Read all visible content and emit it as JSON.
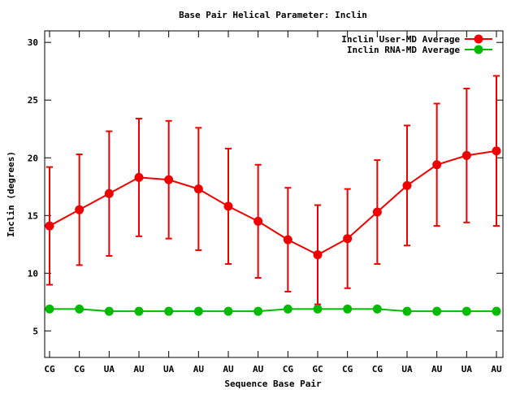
{
  "chart_data": {
    "type": "line",
    "title": "Base Pair Helical Parameter: Inclin",
    "xlabel": "Sequence Base Pair",
    "ylabel": "Inclin (degrees)",
    "categories": [
      "CG",
      "CG",
      "UA",
      "AU",
      "UA",
      "AU",
      "AU",
      "AU",
      "CG",
      "GC",
      "CG",
      "CG",
      "UA",
      "AU",
      "UA",
      "AU"
    ],
    "ylim": [
      2.7,
      31
    ],
    "yticks": [
      5,
      10,
      15,
      20,
      25,
      30
    ],
    "grid": false,
    "legend_position": "top-right",
    "series": [
      {
        "name": "Inclin User-MD Average",
        "color": "#ee0000",
        "values": [
          14.1,
          15.5,
          16.9,
          18.3,
          18.1,
          17.3,
          15.8,
          14.5,
          12.9,
          11.6,
          13.0,
          15.3,
          17.6,
          19.4,
          20.2,
          20.6
        ],
        "error": [
          5.1,
          4.8,
          5.4,
          5.1,
          5.1,
          5.3,
          5.0,
          4.9,
          4.5,
          4.3,
          4.3,
          4.5,
          5.2,
          5.3,
          5.8,
          6.5
        ]
      },
      {
        "name": "Inclin RNA-MD Average",
        "color": "#00bb00",
        "values": [
          6.9,
          6.9,
          6.7,
          6.7,
          6.7,
          6.7,
          6.7,
          6.7,
          6.9,
          6.9,
          6.9,
          6.9,
          6.7,
          6.7,
          6.7,
          6.7
        ]
      }
    ]
  }
}
